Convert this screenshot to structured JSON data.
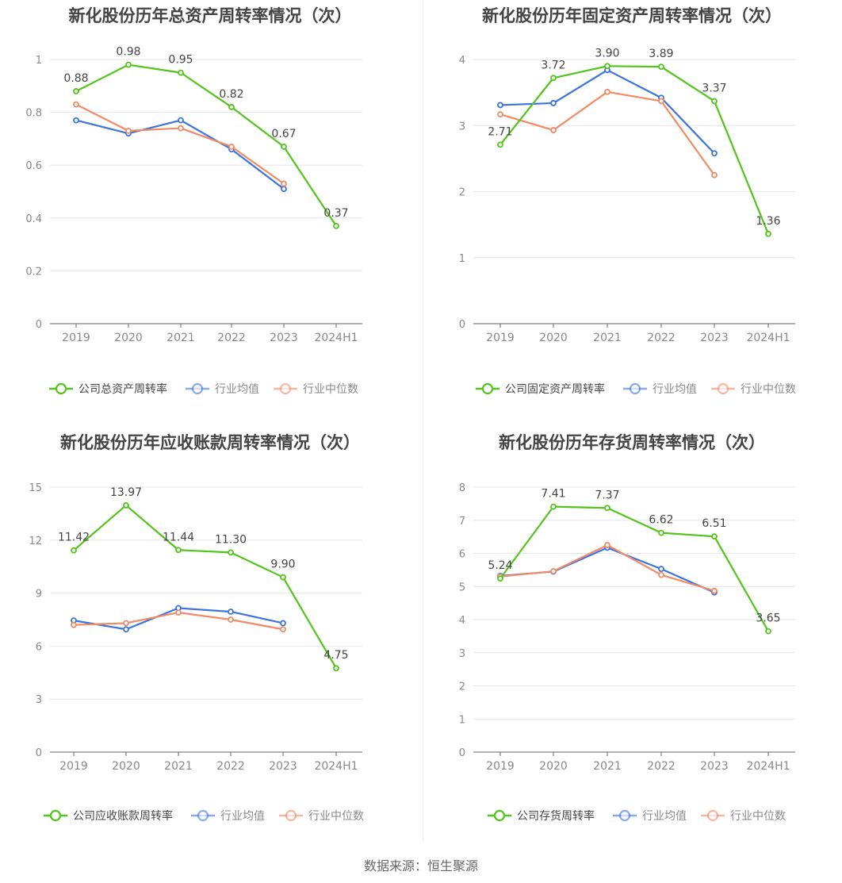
{
  "source_label": "数据来源：恒生聚源",
  "colors": {
    "company": "#52c41a",
    "industry_avg": "#3b73e0",
    "industry_median": "#f28a65"
  },
  "chart_data": [
    {
      "type": "line",
      "title": "新化股份历年总资产周转率情况（次）",
      "categories": [
        "2019",
        "2020",
        "2021",
        "2022",
        "2023",
        "2024H1"
      ],
      "ylim": [
        0,
        1
      ],
      "yticks": [
        "0",
        "0.2",
        "0.4",
        "0.6",
        "0.8",
        "1"
      ],
      "grid": true,
      "legend": "bottom",
      "series": [
        {
          "name": "公司总资产周转率",
          "color": "#52c41a",
          "values": [
            0.88,
            0.98,
            0.95,
            0.82,
            0.67,
            0.37
          ],
          "labels": [
            "0.88",
            "0.98",
            "0.95",
            "0.82",
            "0.67",
            "0.37"
          ]
        },
        {
          "name": "行业均值",
          "color": "#3b73e0",
          "values": [
            0.77,
            0.72,
            0.77,
            0.66,
            0.51,
            null
          ]
        },
        {
          "name": "行业中位数",
          "color": "#f28a65",
          "values": [
            0.83,
            0.73,
            0.74,
            0.67,
            0.53,
            null
          ]
        }
      ]
    },
    {
      "type": "line",
      "title": "新化股份历年固定资产周转率情况（次）",
      "categories": [
        "2019",
        "2020",
        "2021",
        "2022",
        "2023",
        "2024H1"
      ],
      "ylim": [
        0,
        4
      ],
      "yticks": [
        "0",
        "1",
        "2",
        "3",
        "4"
      ],
      "grid": true,
      "legend": "bottom",
      "series": [
        {
          "name": "公司固定资产周转率",
          "color": "#52c41a",
          "values": [
            2.71,
            3.72,
            3.9,
            3.89,
            3.37,
            1.36
          ],
          "labels": [
            "2.71",
            "3.72",
            "3.90",
            "3.89",
            "3.37",
            "1.36"
          ]
        },
        {
          "name": "行业均值",
          "color": "#3b73e0",
          "values": [
            3.31,
            3.34,
            3.84,
            3.42,
            2.58,
            null
          ]
        },
        {
          "name": "行业中位数",
          "color": "#f28a65",
          "values": [
            3.17,
            2.93,
            3.51,
            3.37,
            2.25,
            null
          ]
        }
      ]
    },
    {
      "type": "line",
      "title": "新化股份历年应收账款周转率情况（次）",
      "categories": [
        "2019",
        "2020",
        "2021",
        "2022",
        "2023",
        "2024H1"
      ],
      "ylim": [
        0,
        15
      ],
      "yticks": [
        "0",
        "3",
        "6",
        "9",
        "12",
        "15"
      ],
      "grid": true,
      "legend": "bottom",
      "series": [
        {
          "name": "公司应收账款周转率",
          "color": "#52c41a",
          "values": [
            11.42,
            13.97,
            11.44,
            11.3,
            9.9,
            4.75
          ],
          "labels": [
            "11.42",
            "13.97",
            "11.44",
            "11.30",
            "9.90",
            "4.75"
          ]
        },
        {
          "name": "行业均值",
          "color": "#3b73e0",
          "values": [
            7.45,
            6.95,
            8.15,
            7.95,
            7.3,
            null
          ]
        },
        {
          "name": "行业中位数",
          "color": "#f28a65",
          "values": [
            7.2,
            7.3,
            7.9,
            7.5,
            6.95,
            null
          ]
        }
      ]
    },
    {
      "type": "line",
      "title": "新化股份历年存货周转率情况（次）",
      "categories": [
        "2019",
        "2020",
        "2021",
        "2022",
        "2023",
        "2024H1"
      ],
      "ylim": [
        0,
        8
      ],
      "yticks": [
        "0",
        "1",
        "2",
        "3",
        "4",
        "5",
        "6",
        "7",
        "8"
      ],
      "grid": true,
      "legend": "bottom",
      "series": [
        {
          "name": "公司存货周转率",
          "color": "#52c41a",
          "values": [
            5.24,
            7.41,
            7.37,
            6.62,
            6.51,
            3.65
          ],
          "labels": [
            "5.24",
            "7.41",
            "7.37",
            "6.62",
            "6.51",
            "3.65"
          ]
        },
        {
          "name": "行业均值",
          "color": "#3b73e0",
          "values": [
            5.32,
            5.45,
            6.17,
            5.53,
            4.82,
            null
          ]
        },
        {
          "name": "行业中位数",
          "color": "#f28a65",
          "values": [
            5.3,
            5.46,
            6.25,
            5.35,
            4.87,
            null
          ]
        }
      ]
    }
  ]
}
